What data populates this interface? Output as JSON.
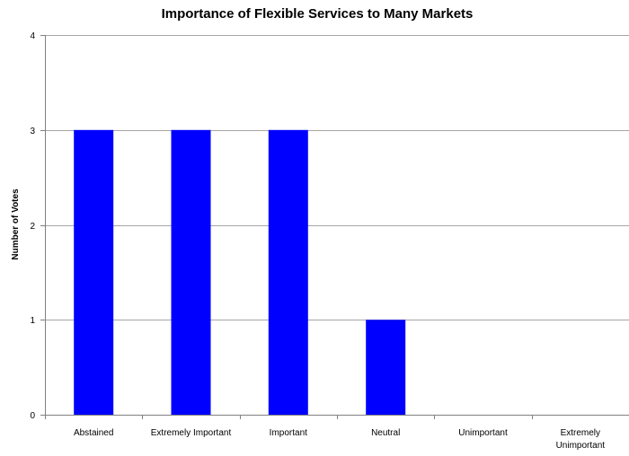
{
  "chart_data": {
    "type": "bar",
    "title": "Importance of Flexible Services to Many Markets",
    "xlabel": "",
    "ylabel": "Number of Votes",
    "categories": [
      "Abstained",
      "Extremely Important",
      "Important",
      "Neutral",
      "Unimportant",
      "Extremely Unimportant"
    ],
    "category_label_lines": [
      [
        "Abstained"
      ],
      [
        "Extremely Important"
      ],
      [
        "Important"
      ],
      [
        "Neutral"
      ],
      [
        "Unimportant"
      ],
      [
        "Extremely",
        "Unimportant"
      ]
    ],
    "values": [
      3,
      3,
      3,
      1,
      0,
      0
    ],
    "ylim": [
      0,
      4
    ],
    "yticks": [
      0,
      1,
      2,
      3,
      4
    ],
    "grid": true,
    "legend": "none",
    "colors": {
      "bar": "#0000FF",
      "grid": "#A6A6A6",
      "axis": "#808080"
    }
  }
}
